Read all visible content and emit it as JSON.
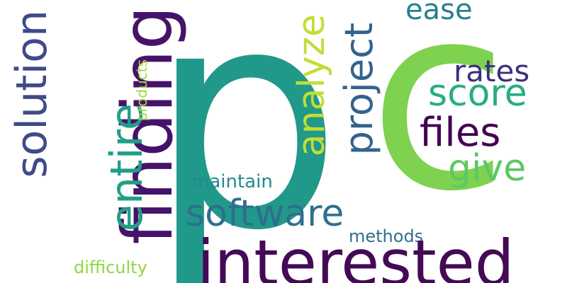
{
  "words": {
    "p": {
      "text": "p",
      "color": "#21998a"
    },
    "c": {
      "text": "c",
      "color": "#7ed24f"
    },
    "interested": {
      "text": "interested",
      "color": "#440a56"
    },
    "finding": {
      "text": "finding",
      "color": "#46136a"
    },
    "solution": {
      "text": "solution",
      "color": "#3f4a8a"
    },
    "entire": {
      "text": "entire",
      "color": "#1f9f88"
    },
    "products": {
      "text": "products",
      "color": "#a2d83e"
    },
    "software": {
      "text": "software",
      "color": "#2e6f8e"
    },
    "maintain": {
      "text": "maintain",
      "color": "#238a8d"
    },
    "analyze": {
      "text": "analyze",
      "color": "#c3dd34"
    },
    "project": {
      "text": "project",
      "color": "#33638d"
    },
    "ease": {
      "text": "ease",
      "color": "#277f8e"
    },
    "rates": {
      "text": "rates",
      "color": "#3b2f7e"
    },
    "score": {
      "text": "score",
      "color": "#27ad81"
    },
    "files": {
      "text": "files",
      "color": "#440154"
    },
    "give": {
      "text": "give",
      "color": "#5cc863"
    },
    "methods": {
      "text": "methods",
      "color": "#2c728e"
    },
    "difficulty": {
      "text": "difficulty",
      "color": "#8fd744"
    }
  }
}
